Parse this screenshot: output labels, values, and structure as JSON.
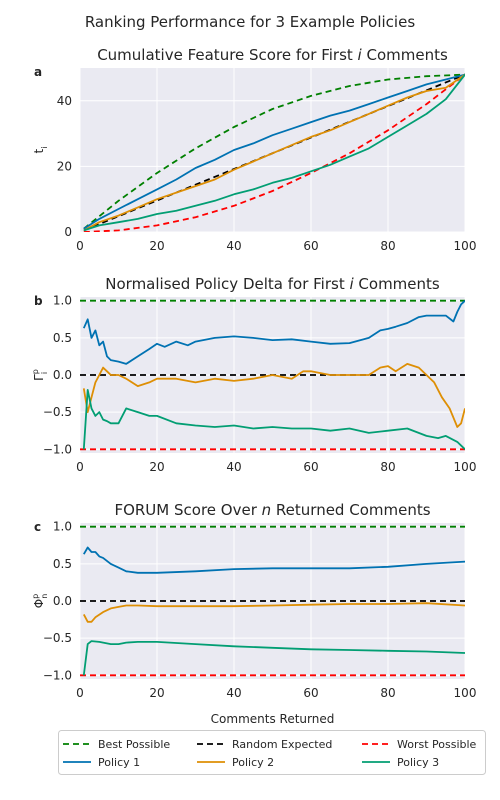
{
  "suptitle": "Ranking Performance for 3 Example Policies",
  "colors": {
    "best": "#008000",
    "random": "#000000",
    "worst": "#ff0000",
    "policy1": "#0072b2",
    "policy2": "#de8f05",
    "policy3": "#029e73",
    "axes_bg": "#eaeaf2",
    "grid": "#ffffff"
  },
  "legend": {
    "entries": [
      {
        "label": "Best Possible",
        "key": "best",
        "dashed": true
      },
      {
        "label": "Random Expected",
        "key": "random",
        "dashed": true
      },
      {
        "label": "Worst Possible",
        "key": "worst",
        "dashed": true
      },
      {
        "label": "Policy 1",
        "key": "policy1",
        "dashed": false
      },
      {
        "label": "Policy 2",
        "key": "policy2",
        "dashed": false
      },
      {
        "label": "Policy 3",
        "key": "policy3",
        "dashed": false
      }
    ]
  },
  "chart_data": [
    {
      "panel": "a",
      "type": "line",
      "title_pre": "Cumulative Feature Score for First ",
      "title_var": "i",
      "title_post": " Comments",
      "ylabel": "t",
      "ylabel_sub": "i",
      "xlabel": "",
      "xlim": [
        0,
        100
      ],
      "ylim": [
        0,
        50
      ],
      "xticks": [
        0,
        20,
        40,
        60,
        80,
        100
      ],
      "yticks": [
        0,
        20,
        40
      ],
      "grid": true,
      "series": [
        {
          "name": "Best Possible",
          "key": "best",
          "dashed": true,
          "x": [
            1,
            10,
            20,
            30,
            40,
            50,
            60,
            70,
            80,
            90,
            100
          ],
          "y": [
            1,
            9.5,
            18,
            25.5,
            32,
            37.5,
            41.5,
            44.5,
            46.5,
            47.5,
            48
          ]
        },
        {
          "name": "Random Expected",
          "key": "random",
          "dashed": true,
          "x": [
            1,
            100
          ],
          "y": [
            0.5,
            48
          ]
        },
        {
          "name": "Worst Possible",
          "key": "worst",
          "dashed": true,
          "x": [
            1,
            10,
            20,
            30,
            40,
            50,
            60,
            70,
            80,
            90,
            100
          ],
          "y": [
            0,
            0.5,
            2,
            4.5,
            8,
            12.5,
            18,
            24,
            31,
            39,
            48
          ]
        },
        {
          "name": "Policy 1",
          "key": "policy1",
          "dashed": false,
          "x": [
            1,
            5,
            10,
            15,
            20,
            25,
            30,
            35,
            40,
            45,
            50,
            55,
            60,
            65,
            70,
            75,
            80,
            85,
            90,
            95,
            100
          ],
          "y": [
            1,
            4,
            7,
            10,
            13,
            16,
            19.5,
            22,
            25,
            27,
            29.5,
            31.5,
            33.5,
            35.5,
            37,
            39,
            41,
            43,
            45,
            46.5,
            48
          ]
        },
        {
          "name": "Policy 2",
          "key": "policy2",
          "dashed": false,
          "x": [
            1,
            5,
            10,
            15,
            20,
            25,
            30,
            35,
            40,
            45,
            50,
            55,
            60,
            65,
            70,
            75,
            80,
            85,
            90,
            95,
            100
          ],
          "y": [
            0.5,
            3,
            5,
            7.5,
            10,
            12,
            14,
            16,
            19,
            21.5,
            24,
            26.5,
            29,
            31,
            33.5,
            36,
            38.5,
            41,
            43,
            44,
            48
          ]
        },
        {
          "name": "Policy 3",
          "key": "policy3",
          "dashed": false,
          "x": [
            1,
            5,
            10,
            15,
            20,
            25,
            30,
            35,
            40,
            45,
            50,
            55,
            60,
            65,
            70,
            75,
            80,
            85,
            90,
            95,
            100
          ],
          "y": [
            0.5,
            2,
            3,
            4,
            5.5,
            6.5,
            8,
            9.5,
            11.5,
            13,
            15,
            16.5,
            18.5,
            20.5,
            23,
            25.5,
            29,
            32.5,
            36,
            40.5,
            48
          ]
        }
      ]
    },
    {
      "panel": "b",
      "type": "line",
      "title_pre": "Normalised Policy Delta for First ",
      "title_var": "i",
      "title_post": " Comments",
      "ylabel": "Γ",
      "ylabel_sub": "i",
      "ylabel_sup": "p",
      "xlabel": "",
      "xlim": [
        0,
        100
      ],
      "ylim": [
        -1.05,
        1.05
      ],
      "xticks": [
        0,
        20,
        40,
        60,
        80,
        100
      ],
      "yticks": [
        -1.0,
        -0.5,
        0.0,
        0.5,
        1.0
      ],
      "grid": true,
      "series": [
        {
          "name": "Best Possible",
          "key": "best",
          "dashed": true,
          "x": [
            0,
            100
          ],
          "y": [
            1.0,
            1.0
          ]
        },
        {
          "name": "Random Expected",
          "key": "random",
          "dashed": true,
          "x": [
            0,
            100
          ],
          "y": [
            0.0,
            0.0
          ]
        },
        {
          "name": "Worst Possible",
          "key": "worst",
          "dashed": true,
          "x": [
            0,
            100
          ],
          "y": [
            -1.0,
            -1.0
          ]
        },
        {
          "name": "Policy 1",
          "key": "policy1",
          "dashed": false,
          "x": [
            1,
            2,
            3,
            4,
            5,
            6,
            7,
            8,
            10,
            12,
            15,
            18,
            20,
            22,
            25,
            28,
            30,
            35,
            40,
            45,
            50,
            55,
            60,
            65,
            70,
            75,
            78,
            80,
            82,
            85,
            88,
            90,
            92,
            95,
            97,
            98,
            99,
            100
          ],
          "y": [
            0.63,
            0.75,
            0.5,
            0.6,
            0.4,
            0.45,
            0.25,
            0.2,
            0.18,
            0.15,
            0.25,
            0.35,
            0.42,
            0.38,
            0.45,
            0.4,
            0.45,
            0.5,
            0.52,
            0.5,
            0.47,
            0.48,
            0.45,
            0.42,
            0.43,
            0.5,
            0.6,
            0.62,
            0.65,
            0.7,
            0.78,
            0.8,
            0.8,
            0.8,
            0.72,
            0.85,
            0.95,
            1.0
          ]
        },
        {
          "name": "Policy 2",
          "key": "policy2",
          "dashed": false,
          "x": [
            1,
            2,
            3,
            4,
            5,
            6,
            7,
            8,
            10,
            12,
            15,
            18,
            20,
            25,
            30,
            35,
            40,
            45,
            50,
            55,
            58,
            60,
            65,
            70,
            75,
            78,
            80,
            82,
            85,
            88,
            90,
            92,
            94,
            96,
            98,
            99,
            100
          ],
          "y": [
            -0.18,
            -0.5,
            -0.3,
            -0.1,
            0.0,
            0.1,
            0.05,
            0.0,
            0.0,
            -0.05,
            -0.15,
            -0.1,
            -0.05,
            -0.05,
            -0.1,
            -0.05,
            -0.08,
            -0.05,
            0.0,
            -0.05,
            0.05,
            0.05,
            0.0,
            0.0,
            0.0,
            0.1,
            0.12,
            0.05,
            0.15,
            0.1,
            0.0,
            -0.1,
            -0.3,
            -0.45,
            -0.7,
            -0.65,
            -0.45
          ]
        },
        {
          "name": "Policy 3",
          "key": "policy3",
          "dashed": false,
          "x": [
            1,
            2,
            3,
            4,
            5,
            6,
            7,
            8,
            10,
            12,
            15,
            18,
            20,
            25,
            30,
            35,
            40,
            45,
            50,
            55,
            60,
            65,
            70,
            75,
            80,
            85,
            90,
            93,
            95,
            98,
            100
          ],
          "y": [
            -1.0,
            -0.2,
            -0.45,
            -0.55,
            -0.5,
            -0.6,
            -0.62,
            -0.65,
            -0.65,
            -0.45,
            -0.5,
            -0.55,
            -0.55,
            -0.65,
            -0.68,
            -0.7,
            -0.68,
            -0.72,
            -0.7,
            -0.72,
            -0.72,
            -0.75,
            -0.72,
            -0.78,
            -0.75,
            -0.72,
            -0.82,
            -0.85,
            -0.82,
            -0.9,
            -1.0
          ]
        }
      ]
    },
    {
      "panel": "c",
      "type": "line",
      "title_pre": "FORUM Score Over ",
      "title_var": "n",
      "title_post": " Returned Comments",
      "ylabel": "Φ",
      "ylabel_sub": "n",
      "ylabel_sup": "p",
      "xlabel": "Comments Returned",
      "xlim": [
        0,
        100
      ],
      "ylim": [
        -1.05,
        1.05
      ],
      "xticks": [
        0,
        20,
        40,
        60,
        80,
        100
      ],
      "yticks": [
        -1.0,
        -0.5,
        0.0,
        0.5,
        1.0
      ],
      "grid": true,
      "series": [
        {
          "name": "Best Possible",
          "key": "best",
          "dashed": true,
          "x": [
            0,
            100
          ],
          "y": [
            1.0,
            1.0
          ]
        },
        {
          "name": "Random Expected",
          "key": "random",
          "dashed": true,
          "x": [
            0,
            100
          ],
          "y": [
            0.0,
            0.0
          ]
        },
        {
          "name": "Worst Possible",
          "key": "worst",
          "dashed": true,
          "x": [
            0,
            100
          ],
          "y": [
            -1.0,
            -1.0
          ]
        },
        {
          "name": "Policy 1",
          "key": "policy1",
          "dashed": false,
          "x": [
            1,
            2,
            3,
            4,
            5,
            6,
            8,
            10,
            12,
            15,
            20,
            30,
            40,
            50,
            60,
            70,
            80,
            90,
            100
          ],
          "y": [
            0.63,
            0.72,
            0.66,
            0.66,
            0.6,
            0.58,
            0.5,
            0.45,
            0.4,
            0.38,
            0.38,
            0.4,
            0.43,
            0.44,
            0.44,
            0.44,
            0.46,
            0.5,
            0.53
          ]
        },
        {
          "name": "Policy 2",
          "key": "policy2",
          "dashed": false,
          "x": [
            1,
            2,
            3,
            4,
            6,
            8,
            10,
            12,
            15,
            20,
            30,
            40,
            50,
            60,
            70,
            80,
            90,
            100
          ],
          "y": [
            -0.18,
            -0.28,
            -0.28,
            -0.22,
            -0.15,
            -0.1,
            -0.08,
            -0.06,
            -0.06,
            -0.07,
            -0.07,
            -0.07,
            -0.06,
            -0.05,
            -0.04,
            -0.04,
            -0.03,
            -0.06
          ]
        },
        {
          "name": "Policy 3",
          "key": "policy3",
          "dashed": false,
          "x": [
            1,
            2,
            3,
            5,
            8,
            10,
            12,
            15,
            20,
            30,
            40,
            50,
            60,
            70,
            80,
            90,
            100
          ],
          "y": [
            -1.0,
            -0.58,
            -0.54,
            -0.55,
            -0.58,
            -0.58,
            -0.56,
            -0.55,
            -0.55,
            -0.58,
            -0.61,
            -0.63,
            -0.65,
            -0.66,
            -0.67,
            -0.68,
            -0.7
          ]
        }
      ]
    }
  ]
}
